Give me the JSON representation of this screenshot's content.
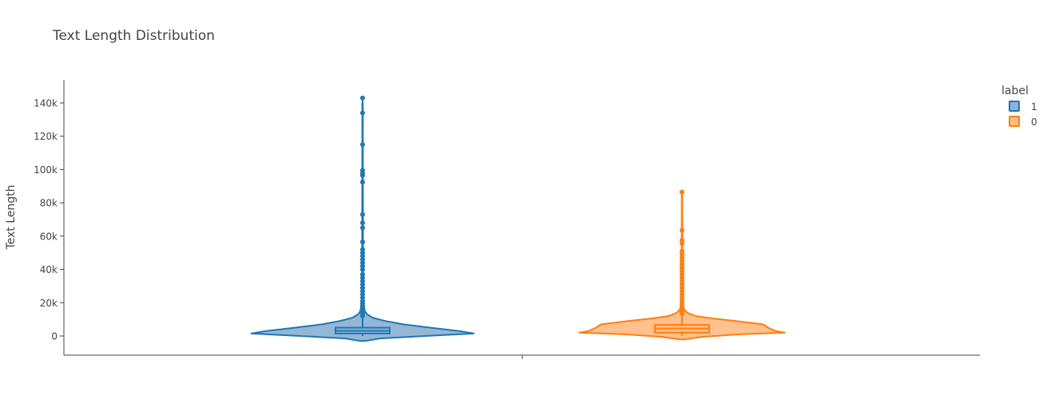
{
  "chart_data": {
    "type": "violin",
    "title": "Text Length Distribution",
    "xlabel": "",
    "ylabel": "Text Length",
    "ylim": [
      -11500,
      154000
    ],
    "yticks": [
      0,
      20000,
      40000,
      60000,
      80000,
      100000,
      120000,
      140000
    ],
    "ytick_labels": [
      "0",
      "20k",
      "40k",
      "60k",
      "80k",
      "100k",
      "120k",
      "140k"
    ],
    "grid": false,
    "legend": {
      "title": "label",
      "placement": "top-right"
    },
    "series": [
      {
        "name": "1",
        "color": "#1f77b4",
        "fill": "#8fb3d4",
        "box": {
          "q1": 1500,
          "median": 3100,
          "q3": 5000,
          "whisker_low": 0,
          "whisker_high": 11000
        },
        "outliers": [
          12000,
          13500,
          15000,
          16500,
          18000,
          19500,
          21000,
          23000,
          25000,
          27000,
          29000,
          31000,
          33000,
          35000,
          37000,
          40000,
          42000,
          44000,
          46000,
          48000,
          50000,
          52000,
          56500,
          65000,
          68000,
          73000,
          92500,
          96500,
          98000,
          99500,
          115000,
          134000,
          143000
        ],
        "density": [
          [
            -3000,
            0.02
          ],
          [
            -1500,
            0.15
          ],
          [
            0,
            0.55
          ],
          [
            1500,
            0.98
          ],
          [
            3000,
            0.85
          ],
          [
            5000,
            0.6
          ],
          [
            7000,
            0.36
          ],
          [
            9000,
            0.2
          ],
          [
            11000,
            0.09
          ],
          [
            13000,
            0.04
          ],
          [
            15000,
            0.02
          ],
          [
            20000,
            0.008
          ],
          [
            40000,
            0.004
          ],
          [
            140000,
            0.002
          ]
        ]
      },
      {
        "name": "0",
        "color": "#ff7f0e",
        "fill": "#ffbe87",
        "box": {
          "q1": 2000,
          "median": 4500,
          "q3": 6700,
          "whisker_low": 0,
          "whisker_high": 13000
        },
        "outliers": [
          13500,
          15000,
          16500,
          18000,
          19500,
          21000,
          23000,
          25000,
          27000,
          29000,
          31000,
          33000,
          35000,
          37000,
          39000,
          41000,
          43000,
          45000,
          47000,
          49000,
          51000,
          55500,
          57500,
          63500,
          86500
        ],
        "density": [
          [
            -2000,
            0.02
          ],
          [
            -500,
            0.2
          ],
          [
            1000,
            0.55
          ],
          [
            2000,
            0.99
          ],
          [
            3000,
            0.9
          ],
          [
            5000,
            0.83
          ],
          [
            7000,
            0.78
          ],
          [
            9000,
            0.52
          ],
          [
            10500,
            0.3
          ],
          [
            12000,
            0.13
          ],
          [
            14000,
            0.05
          ],
          [
            16000,
            0.02
          ],
          [
            20000,
            0.008
          ],
          [
            40000,
            0.004
          ],
          [
            86000,
            0.002
          ]
        ]
      }
    ]
  }
}
